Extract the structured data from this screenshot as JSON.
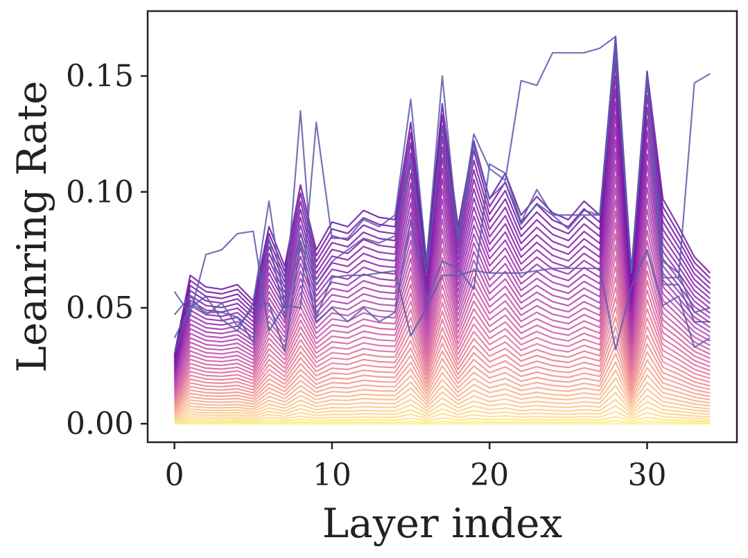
{
  "chart_data": {
    "type": "line",
    "title": "",
    "xlabel": "Layer index",
    "ylabel": "Leanring Rate",
    "xlim": [
      -1.7,
      35.7
    ],
    "ylim": [
      -0.008,
      0.178
    ],
    "xticks": [
      0,
      10,
      20,
      30
    ],
    "yticks": [
      0.0,
      0.05,
      0.1,
      0.15
    ],
    "ytick_labels": [
      "0.00",
      "0.05",
      "0.10",
      "0.15"
    ],
    "grid": false,
    "legend": "none",
    "colormap": "plasma-like gradient from yellow (early steps) to purple (late steps)",
    "colormap_stops": [
      "#fcf283",
      "#f9c58a",
      "#ef8f8c",
      "#d9619a",
      "#b23fab",
      "#8a1dab",
      "#6a0fa0"
    ],
    "outlier_color": "#5c5aad",
    "x": [
      0,
      1,
      2,
      3,
      4,
      5,
      6,
      7,
      8,
      9,
      10,
      11,
      12,
      13,
      14,
      15,
      16,
      17,
      18,
      19,
      20,
      21,
      22,
      23,
      24,
      25,
      26,
      27,
      28,
      29,
      30,
      31,
      32,
      33,
      34
    ],
    "base_profile": [
      0.03,
      0.064,
      0.059,
      0.058,
      0.06,
      0.053,
      0.085,
      0.068,
      0.103,
      0.075,
      0.087,
      0.085,
      0.092,
      0.089,
      0.088,
      0.13,
      0.07,
      0.138,
      0.085,
      0.122,
      0.097,
      0.108,
      0.09,
      0.098,
      0.091,
      0.088,
      0.096,
      0.09,
      0.167,
      0.066,
      0.152,
      0.097,
      0.085,
      0.072,
      0.065
    ],
    "gradient_series_count": 40,
    "outlier_series": [
      {
        "values": [
          0.057,
          0.047,
          0.073,
          0.075,
          0.082,
          0.083,
          0.04,
          0.051,
          0.05,
          0.13,
          0.08,
          0.08,
          0.088,
          0.085,
          0.09,
          0.14,
          0.07,
          0.15,
          0.08,
          0.125,
          0.11,
          0.105,
          0.148,
          0.146,
          0.16,
          0.16,
          0.16,
          0.162,
          0.167,
          0.065,
          0.15,
          0.063,
          0.063,
          0.147,
          0.151
        ]
      },
      {
        "values": [
          0.037,
          0.05,
          0.055,
          0.045,
          0.04,
          0.052,
          0.096,
          0.05,
          0.135,
          0.046,
          0.063,
          0.064,
          0.064,
          0.065,
          0.066,
          0.038,
          0.05,
          0.064,
          0.064,
          0.066,
          0.065,
          0.065,
          0.065,
          0.066,
          0.067,
          0.067,
          0.067,
          0.067,
          0.032,
          0.059,
          0.075,
          0.051,
          0.055,
          0.033,
          0.037
        ]
      },
      {
        "values": [
          0.047,
          0.055,
          0.047,
          0.052,
          0.042,
          0.05,
          0.052,
          0.031,
          0.078,
          0.044,
          0.05,
          0.044,
          0.05,
          0.044,
          0.048,
          0.088,
          0.053,
          0.07,
          0.067,
          0.058,
          0.112,
          0.108,
          0.087,
          0.101,
          0.09,
          0.084,
          0.092,
          0.09,
          0.165,
          0.065,
          0.148,
          0.07,
          0.065,
          0.048,
          0.05
        ]
      },
      {
        "values": [
          0.03,
          0.052,
          0.048,
          0.048,
          0.046,
          0.035,
          0.08,
          0.045,
          0.082,
          0.06,
          0.07,
          0.075,
          0.08,
          0.078,
          0.081,
          0.115,
          0.064,
          0.128,
          0.078,
          0.12,
          0.097,
          0.104,
          0.086,
          0.095,
          0.09,
          0.09,
          0.09,
          0.09,
          0.16,
          0.065,
          0.15,
          0.06,
          0.06,
          0.044,
          0.044
        ]
      }
    ]
  }
}
